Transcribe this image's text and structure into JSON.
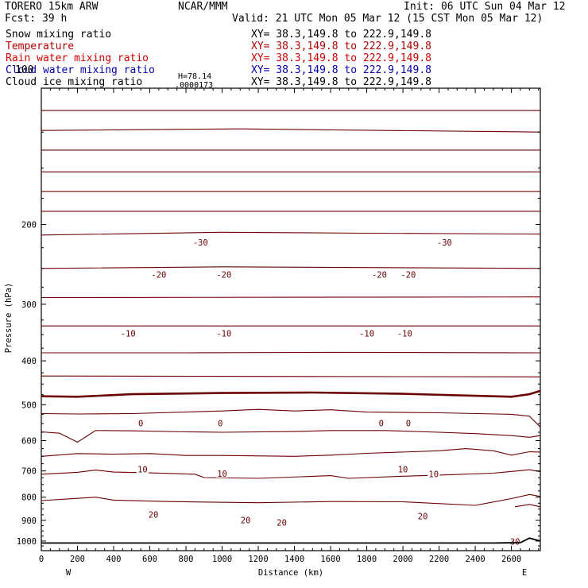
{
  "header": {
    "model": "TORERO  15km ARW",
    "org": "NCAR/MMM",
    "init": "Init: 06 UTC Sun 04 Mar 12",
    "fcst": "Fcst:   39 h",
    "valid": "Valid: 21 UTC Mon 05 Mar 12 (15 CST Mon 05 Mar 12)",
    "fields": [
      {
        "name": "Snow mixing ratio",
        "color": "#000000",
        "xy": "XY=  38.3,149.8 to 222.9,149.8",
        "xy_color": "#000000"
      },
      {
        "name": "Temperature",
        "color": "#b00000",
        "xy": "XY=  38.3,149.8 to 222.9,149.8",
        "xy_color": "#b00000"
      },
      {
        "name": "Rain water mixing ratio",
        "color": "#d00000",
        "xy": "XY=  38.3,149.8 to 222.9,149.8",
        "xy_color": "#d00000"
      },
      {
        "name": "Cloud water mixing ratio",
        "color": "#0000b0",
        "xy": "XY=  38.3,149.8 to 222.9,149.8",
        "xy_color": "#0000b0"
      },
      {
        "name": "Cloud ice mixing ratio",
        "color": "#000000",
        "xy": "XY=  38.3,149.8 to 222.9,149.8",
        "xy_color": "#000000"
      }
    ],
    "partial_label": "100",
    "annotation_h": "H=78.14",
    "annotation_l": ".0000173"
  },
  "chart_data": {
    "type": "line",
    "description_kind": "vertical cross-section, isotherm contours",
    "xlabel": "Distance (km)",
    "ylabel": "Pressure (hPa)",
    "xlim": [
      0,
      2760
    ],
    "ylim": [
      1050,
      100
    ],
    "y_scale": "log",
    "x_ticks": [
      0,
      200,
      400,
      600,
      800,
      1000,
      1200,
      1400,
      1600,
      1800,
      2000,
      2200,
      2400,
      2600
    ],
    "y_ticks": [
      200,
      300,
      400,
      500,
      600,
      700,
      800,
      900,
      1000
    ],
    "x_end_labels": {
      "left": "W",
      "right": "E"
    },
    "contour_color": "#6b0000",
    "contour_interval_C": 5,
    "ground_line_color": "#000000",
    "contours": [
      {
        "level": -60,
        "points": [
          [
            0,
            112
          ],
          [
            2760,
            112
          ]
        ]
      },
      {
        "level": -55,
        "points": [
          [
            0,
            124
          ],
          [
            1100,
            123
          ],
          [
            2760,
            125
          ]
        ]
      },
      {
        "level": -50,
        "points": [
          [
            0,
            137
          ],
          [
            1500,
            137
          ],
          [
            2760,
            137
          ]
        ]
      },
      {
        "level": -45,
        "points": [
          [
            0,
            153
          ],
          [
            2760,
            153
          ]
        ]
      },
      {
        "level": -40,
        "points": [
          [
            0,
            169
          ],
          [
            2760,
            169
          ]
        ]
      },
      {
        "level": -35,
        "points": [
          [
            0,
            187
          ],
          [
            2760,
            187
          ]
        ]
      },
      {
        "level": -30,
        "points": [
          [
            0,
            211
          ],
          [
            1000,
            208
          ],
          [
            1800,
            209
          ],
          [
            2760,
            210
          ]
        ]
      },
      {
        "level": -25,
        "points": [
          [
            0,
            250
          ],
          [
            1000,
            248
          ],
          [
            2760,
            250
          ]
        ]
      },
      {
        "level": -20,
        "points": [
          [
            0,
            290
          ],
          [
            2760,
            289
          ]
        ]
      },
      {
        "level": -15,
        "points": [
          [
            0,
            335
          ],
          [
            1000,
            335
          ],
          [
            2760,
            335
          ]
        ]
      },
      {
        "level": -10,
        "points": [
          [
            0,
            384
          ],
          [
            800,
            384
          ],
          [
            1600,
            383
          ],
          [
            2760,
            384
          ]
        ]
      },
      {
        "level": -5,
        "points": [
          [
            0,
            432
          ],
          [
            2760,
            434
          ]
        ]
      },
      {
        "level": 0,
        "points": [
          [
            0,
            479
          ],
          [
            200,
            480
          ],
          [
            500,
            474
          ],
          [
            1000,
            471
          ],
          [
            1500,
            470
          ],
          [
            2000,
            473
          ],
          [
            2500,
            479
          ],
          [
            2600,
            480
          ],
          [
            2700,
            474
          ],
          [
            2760,
            466
          ]
        ],
        "bold": true
      },
      {
        "level": 5,
        "points": [
          [
            0,
            523
          ],
          [
            200,
            524
          ],
          [
            500,
            523
          ],
          [
            1000,
            516
          ],
          [
            1200,
            512
          ],
          [
            1400,
            516
          ],
          [
            1600,
            513
          ],
          [
            1800,
            519
          ],
          [
            2200,
            521
          ],
          [
            2600,
            525
          ],
          [
            2700,
            530
          ],
          [
            2760,
            560
          ]
        ]
      },
      {
        "level": 10,
        "points": [
          [
            0,
            574
          ],
          [
            100,
            578
          ],
          [
            200,
            605
          ],
          [
            300,
            570
          ],
          [
            500,
            571
          ],
          [
            800,
            574
          ],
          [
            1000,
            575
          ],
          [
            1400,
            573
          ],
          [
            1600,
            570
          ],
          [
            1900,
            570
          ],
          [
            2200,
            575
          ],
          [
            2400,
            579
          ],
          [
            2600,
            585
          ],
          [
            2700,
            590
          ],
          [
            2760,
            585
          ]
        ]
      },
      {
        "level": 15,
        "points": [
          [
            0,
            650
          ],
          [
            200,
            641
          ],
          [
            400,
            643
          ],
          [
            600,
            641
          ],
          [
            800,
            647
          ],
          [
            1000,
            647
          ],
          [
            1400,
            650
          ],
          [
            1600,
            646
          ],
          [
            1800,
            640
          ],
          [
            2200,
            632
          ],
          [
            2350,
            625
          ],
          [
            2500,
            632
          ],
          [
            2600,
            646
          ],
          [
            2700,
            635
          ],
          [
            2760,
            636
          ]
        ]
      },
      {
        "level": 20,
        "points": [
          [
            0,
            712
          ],
          [
            200,
            705
          ],
          [
            300,
            697
          ],
          [
            400,
            704
          ],
          [
            600,
            707
          ],
          [
            850,
            712
          ],
          [
            900,
            724
          ],
          [
            1200,
            727
          ],
          [
            1600,
            717
          ],
          [
            1700,
            727
          ],
          [
            2000,
            719
          ],
          [
            2200,
            715
          ],
          [
            2500,
            708
          ],
          [
            2700,
            696
          ],
          [
            2760,
            703
          ]
        ]
      },
      {
        "level": 25,
        "points": [
          [
            0,
            814
          ],
          [
            200,
            805
          ],
          [
            300,
            800
          ],
          [
            400,
            812
          ],
          [
            700,
            818
          ],
          [
            1200,
            823
          ],
          [
            1600,
            818
          ],
          [
            2000,
            819
          ],
          [
            2400,
            834
          ],
          [
            2600,
            806
          ],
          [
            2700,
            789
          ],
          [
            2760,
            797
          ]
        ]
      },
      {
        "level": 30,
        "points": [
          [
            2620,
            840
          ],
          [
            2700,
            830
          ],
          [
            2760,
            840
          ]
        ]
      }
    ],
    "ground_pressure": [
      [
        0,
        1010
      ],
      [
        2500,
        1010
      ],
      [
        2650,
        1008
      ],
      [
        2700,
        985
      ],
      [
        2760,
        1000
      ]
    ],
    "contour_labels": [
      {
        "text": "-30",
        "x": 880,
        "p": 219
      },
      {
        "text": "-30",
        "x": 2230,
        "p": 219
      },
      {
        "text": "-20",
        "x": 650,
        "p": 258
      },
      {
        "text": "-20",
        "x": 1010,
        "p": 258
      },
      {
        "text": "-20",
        "x": 1870,
        "p": 258
      },
      {
        "text": "-20",
        "x": 2030,
        "p": 258
      },
      {
        "text": "-10",
        "x": 480,
        "p": 348
      },
      {
        "text": "-10",
        "x": 1010,
        "p": 348
      },
      {
        "text": "-10",
        "x": 1800,
        "p": 348
      },
      {
        "text": "-10",
        "x": 2010,
        "p": 348
      },
      {
        "text": "0",
        "x": 550,
        "p": 549
      },
      {
        "text": "0",
        "x": 990,
        "p": 549
      },
      {
        "text": "0",
        "x": 1880,
        "p": 549
      },
      {
        "text": "0",
        "x": 2030,
        "p": 549
      },
      {
        "text": "10",
        "x": 560,
        "p": 694
      },
      {
        "text": "10",
        "x": 1000,
        "p": 710
      },
      {
        "text": "10",
        "x": 2000,
        "p": 694
      },
      {
        "text": "10",
        "x": 2170,
        "p": 711
      },
      {
        "text": "20",
        "x": 620,
        "p": 874
      },
      {
        "text": "20",
        "x": 1130,
        "p": 898
      },
      {
        "text": "20",
        "x": 1330,
        "p": 909
      },
      {
        "text": "20",
        "x": 2110,
        "p": 881
      },
      {
        "text": "30",
        "x": 2620,
        "p": 1003
      }
    ]
  }
}
